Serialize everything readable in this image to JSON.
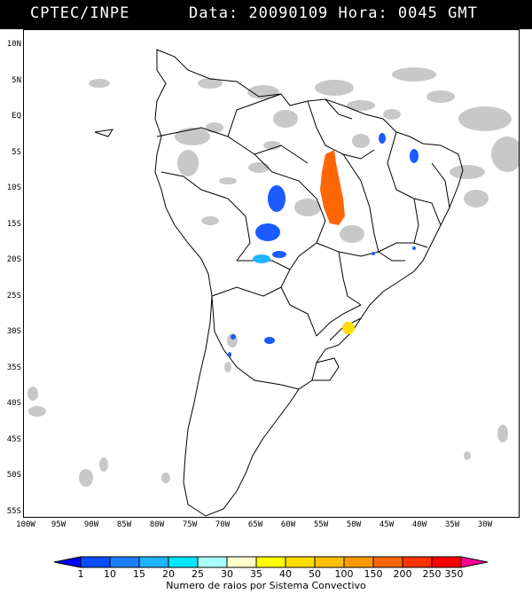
{
  "header": {
    "source": "CPTEC/INPE",
    "datetime": "Data: 20090109 Hora: 0045 GMT"
  },
  "map": {
    "lat_labels": [
      "10N",
      "5N",
      "EQ",
      "5S",
      "10S",
      "15S",
      "20S",
      "25S",
      "30S",
      "35S",
      "40S",
      "45S",
      "50S",
      "55S"
    ],
    "lon_labels": [
      "100W",
      "95W",
      "90W",
      "85W",
      "80W",
      "75W",
      "70W",
      "65W",
      "60W",
      "55W",
      "50W",
      "45W",
      "40W",
      "35W",
      "30W"
    ]
  },
  "colorbar": {
    "labels": [
      "1",
      "10",
      "15",
      "20",
      "25",
      "30",
      "35",
      "40",
      "50",
      "100",
      "150",
      "200",
      "250",
      "350"
    ],
    "colors": [
      "#0000ff",
      "#0a4dff",
      "#1a7fff",
      "#1fb4ff",
      "#00e6ff",
      "#aaffff",
      "#ffffcc",
      "#ffff00",
      "#ffdd00",
      "#ffc000",
      "#ff9900",
      "#ff6600",
      "#ff3300",
      "#ff0000",
      "#ff0099"
    ],
    "title": "Numero de raios por Sistema Convectivo"
  },
  "lightning_clusters": [
    {
      "region": "Mato Grosso (Brazil)",
      "level_color": "#ff6600"
    },
    {
      "region": "Bolivia north",
      "level_color": "#1a5cff"
    },
    {
      "region": "Bolivia central",
      "level_color": "#1a5cff"
    },
    {
      "region": "Paraguay/Bolivia border",
      "level_color": "#1fb4ff"
    },
    {
      "region": "Maranhao",
      "level_color": "#1a5cff"
    },
    {
      "region": "Piaui/Ceara",
      "level_color": "#1a5cff"
    },
    {
      "region": "Rio Grande do Sul",
      "level_color": "#ffdd00"
    },
    {
      "region": "Argentina central",
      "level_color": "#1a5cff"
    }
  ]
}
